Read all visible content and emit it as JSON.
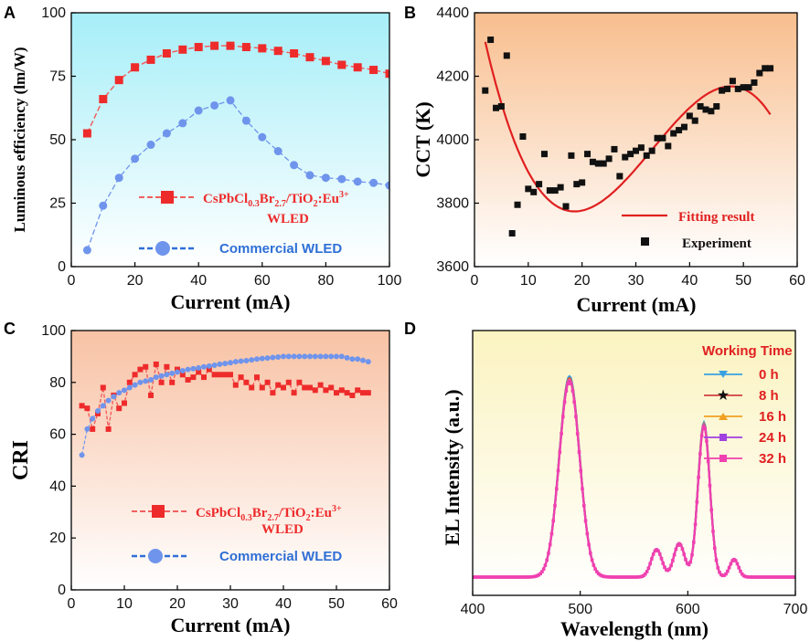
{
  "colors": {
    "red": "#ee2b2b",
    "red_dash": "#f06060",
    "blue": "#6f94ec",
    "blue_legend": "#2f6fd6",
    "fit_red": "#e02020",
    "black": "#111111",
    "pink": "#f040b0"
  },
  "chart_data": [
    {
      "id": "A",
      "type": "line",
      "panel_label": "A",
      "xlabel": "Current (mA)",
      "ylabel": "Luminous efficiency (lm/W)",
      "xlim": [
        0,
        100
      ],
      "ylim": [
        0,
        100
      ],
      "xticks": [
        "0",
        "20",
        "40",
        "60",
        "80",
        "100"
      ],
      "yticks": [
        "0",
        "25",
        "50",
        "75",
        "100"
      ],
      "legend_position": "bottom-center",
      "series": [
        {
          "name": "CsPbCl0.3Br2.7/TiO2:Eu3+ WLED",
          "legend_main": "CsPbCl",
          "legend_sub1": "0.3",
          "legend_mid": "Br",
          "legend_sub2": "2.7",
          "legend_tail": "/TiO",
          "legend_sub3": "2",
          "legend_tail2": ":Eu",
          "legend_sup": "3+",
          "legend_line2": "WLED",
          "marker": "square",
          "color": "red",
          "x": [
            5,
            10,
            15,
            20,
            25,
            30,
            35,
            40,
            45,
            50,
            55,
            60,
            65,
            70,
            75,
            80,
            85,
            90,
            95,
            100
          ],
          "y": [
            52.5,
            66,
            73.5,
            78.5,
            81.5,
            84,
            85.5,
            86.5,
            87,
            87,
            86.5,
            86,
            85,
            84,
            82.5,
            81,
            79.5,
            78.5,
            77.5,
            76
          ]
        },
        {
          "name": "Commercial WLED",
          "legend_main": "Commercial WLED",
          "marker": "circle",
          "color": "blue",
          "x": [
            5,
            10,
            15,
            20,
            25,
            30,
            35,
            40,
            45,
            50,
            55,
            60,
            65,
            70,
            75,
            80,
            85,
            90,
            95,
            100
          ],
          "y": [
            6.5,
            24,
            35,
            42.5,
            48,
            52.5,
            56.5,
            61.5,
            63.5,
            65.5,
            57.5,
            51,
            45.5,
            40,
            36,
            35,
            34.5,
            33.5,
            33,
            32
          ]
        }
      ]
    },
    {
      "id": "B",
      "type": "scatter",
      "panel_label": "B",
      "xlabel": "Current (mA)",
      "ylabel": "CCT (K)",
      "xlim": [
        0,
        60
      ],
      "ylim": [
        3600,
        4400
      ],
      "xticks": [
        "0",
        "10",
        "20",
        "30",
        "40",
        "50",
        "60"
      ],
      "yticks": [
        "3600",
        "3800",
        "4000",
        "4200",
        "4400"
      ],
      "legend_position": "bottom-right",
      "experiment": {
        "name": "Experiment",
        "x": [
          2,
          3,
          4,
          5,
          6,
          7,
          8,
          9,
          10,
          11,
          12,
          13,
          14,
          15,
          16,
          17,
          18,
          19,
          20,
          21,
          22,
          23,
          24,
          25,
          26,
          27,
          28,
          29,
          30,
          31,
          32,
          33,
          34,
          35,
          36,
          37,
          38,
          39,
          40,
          41,
          42,
          43,
          44,
          45,
          46,
          47,
          48,
          49,
          50,
          51,
          52,
          53,
          54,
          55
        ],
        "y": [
          4155,
          4315,
          4100,
          4105,
          4265,
          3705,
          3795,
          4010,
          3845,
          3835,
          3860,
          3955,
          3840,
          3840,
          3850,
          3790,
          3950,
          3860,
          3865,
          3955,
          3930,
          3925,
          3925,
          3940,
          3970,
          3885,
          3945,
          3955,
          3965,
          3975,
          3950,
          3965,
          4005,
          4005,
          3980,
          4020,
          4030,
          4040,
          4075,
          4060,
          4105,
          4095,
          4090,
          4105,
          4155,
          4160,
          4185,
          4160,
          4165,
          4165,
          4180,
          4210,
          4225,
          4225
        ]
      },
      "fit": {
        "name": "Fitting result",
        "x_start": 2,
        "x_end": 55,
        "coefficients": [
          4467,
          -85.64,
          3.2,
          -0.0322
        ]
      }
    },
    {
      "id": "C",
      "type": "line",
      "panel_label": "C",
      "xlabel": "Current (mA)",
      "ylabel": "CRI",
      "xlim": [
        0,
        60
      ],
      "ylim": [
        0,
        100
      ],
      "xticks": [
        "0",
        "10",
        "20",
        "30",
        "40",
        "50",
        "60"
      ],
      "yticks": [
        "0",
        "20",
        "40",
        "60",
        "80",
        "100"
      ],
      "legend_position": "bottom-center",
      "series": [
        {
          "name": "CsPbCl0.3Br2.7/TiO2:Eu3+ WLED",
          "marker": "square",
          "color": "red",
          "x": [
            2,
            3,
            4,
            5,
            6,
            7,
            8,
            9,
            10,
            11,
            12,
            13,
            14,
            15,
            16,
            17,
            18,
            19,
            20,
            21,
            22,
            23,
            24,
            25,
            26,
            27,
            28,
            29,
            30,
            31,
            32,
            33,
            34,
            35,
            36,
            37,
            38,
            39,
            40,
            41,
            42,
            43,
            44,
            45,
            46,
            47,
            48,
            49,
            50,
            51,
            52,
            53,
            54,
            55,
            56
          ],
          "y": [
            71,
            70,
            62,
            68,
            78,
            62,
            75,
            70,
            72,
            80,
            83,
            85,
            86,
            75,
            87,
            80,
            86,
            80,
            85,
            83,
            81,
            82,
            84,
            82,
            85,
            83,
            83,
            83,
            83,
            79,
            82,
            80,
            78,
            82,
            78,
            80,
            76,
            79,
            78,
            80,
            76,
            80,
            78,
            78,
            77,
            79,
            77,
            78,
            76,
            77,
            76,
            75,
            77,
            76,
            76
          ]
        },
        {
          "name": "Commercial WLED",
          "marker": "circle",
          "color": "blue",
          "x": [
            2,
            3,
            4,
            5,
            6,
            7,
            8,
            9,
            10,
            11,
            12,
            13,
            14,
            15,
            16,
            17,
            18,
            19,
            20,
            21,
            22,
            23,
            24,
            25,
            26,
            27,
            28,
            29,
            30,
            31,
            32,
            33,
            34,
            35,
            36,
            37,
            38,
            39,
            40,
            41,
            42,
            43,
            44,
            45,
            46,
            47,
            48,
            49,
            50,
            51,
            52,
            53,
            54,
            55,
            56
          ],
          "y": [
            52,
            62,
            66,
            69,
            71,
            73,
            74.5,
            76,
            77,
            78,
            79,
            80,
            80.5,
            81,
            82,
            82.5,
            83,
            83.5,
            84,
            84.5,
            85,
            85.3,
            85.6,
            86,
            86.3,
            86.6,
            87,
            87.3,
            87.6,
            88,
            88.2,
            88.4,
            88.7,
            89,
            89.2,
            89.4,
            89.6,
            89.8,
            90,
            90,
            90,
            90,
            90,
            90,
            90,
            90,
            90,
            90,
            90,
            90,
            89.5,
            89,
            89,
            88.5,
            88
          ]
        }
      ]
    },
    {
      "id": "D",
      "type": "line",
      "panel_label": "D",
      "xlabel": "Wavelength (nm)",
      "ylabel": "EL Intensity (a.u.)",
      "xlim": [
        400,
        700
      ],
      "xticks": [
        "400",
        "500",
        "600",
        "700"
      ],
      "legend_title": "Working Time",
      "legend_position": "top-right",
      "series": [
        {
          "name": "0 h",
          "color": "#3aa0e0",
          "marker": "triangle-down",
          "scale": 1.0
        },
        {
          "name": "8 h",
          "color": "#d04040",
          "marker": "star",
          "scale": 0.99
        },
        {
          "name": "16 h",
          "color": "#f0a020",
          "marker": "triangle-up",
          "scale": 0.985
        },
        {
          "name": "24 h",
          "color": "#a040e0",
          "marker": "square",
          "scale": 0.98
        },
        {
          "name": "32 h",
          "color": "#f040b0",
          "marker": "square",
          "scale": 0.975
        }
      ],
      "peaks": [
        {
          "center": 490,
          "height": 1.0,
          "width": 9.5
        },
        {
          "center": 571,
          "height": 0.14,
          "width": 5
        },
        {
          "center": 592,
          "height": 0.17,
          "width": 5
        },
        {
          "center": 615,
          "height": 0.77,
          "width": 5.5
        },
        {
          "center": 643,
          "height": 0.09,
          "width": 4
        }
      ],
      "baseline": 0.0
    }
  ]
}
